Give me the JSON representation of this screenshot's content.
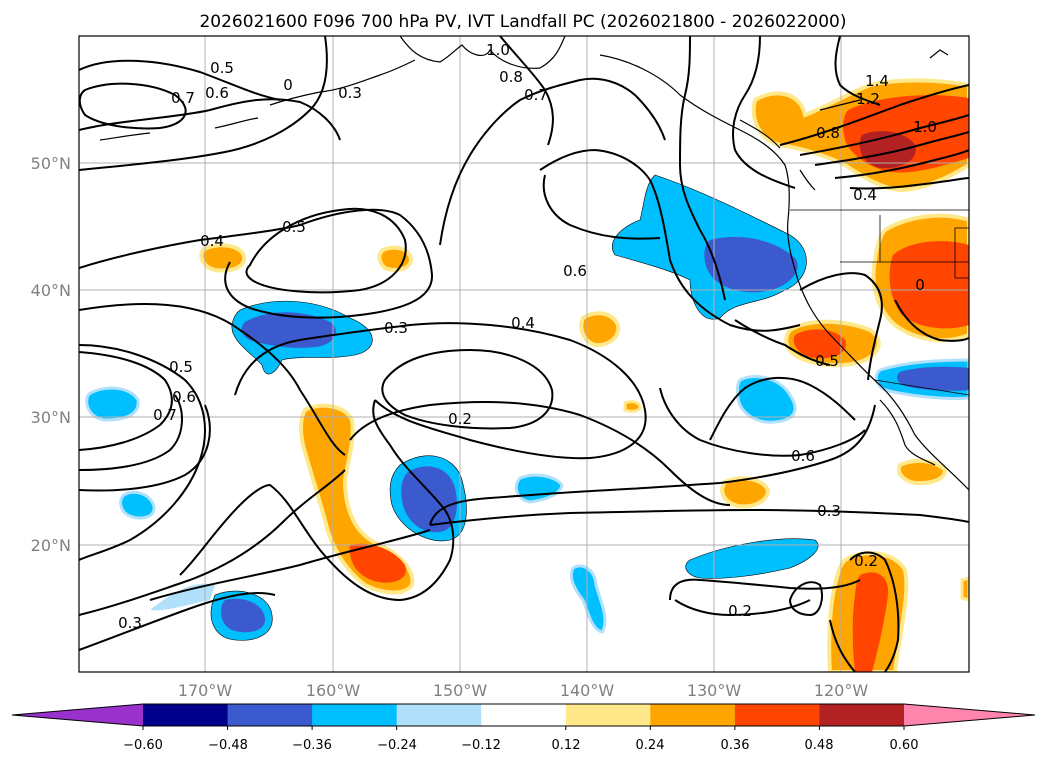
{
  "title": "2026021600 F096 700 hPa PV, IVT Landfall PC (2026021800 - 2026022000)",
  "map": {
    "lat_labels": [
      "50°N",
      "40°N",
      "30°N",
      "20°N"
    ],
    "lon_labels": [
      "170°W",
      "160°W",
      "150°W",
      "140°W",
      "130°W",
      "120°W"
    ],
    "contour_labels": [
      "1.0",
      "0.8",
      "0.7",
      "0.5",
      "0.6",
      "0.7",
      "0",
      "0.3",
      "1.4",
      "1.2",
      "1.0",
      "0.8",
      "0.4",
      "0.4",
      "0.5",
      "0.6",
      "0.4",
      "0.3",
      "0.5",
      "0.5",
      "0.6",
      "0.7",
      "0.2",
      "0.6",
      "0.3",
      "0.2",
      "0.2",
      "0.3",
      "0"
    ]
  },
  "colorbar": {
    "colors": [
      "#9932cc",
      "#00008b",
      "#3a5acd",
      "#00bfff",
      "#b0e0fa",
      "#ffffff",
      "#ffe88a",
      "#ffa500",
      "#ff4500",
      "#b22222",
      "#ff85ad"
    ],
    "tick_labels": [
      "−0.60",
      "−0.48",
      "−0.36",
      "−0.24",
      "−0.12",
      "0.12",
      "0.24",
      "0.36",
      "0.48",
      "0.60"
    ]
  }
}
